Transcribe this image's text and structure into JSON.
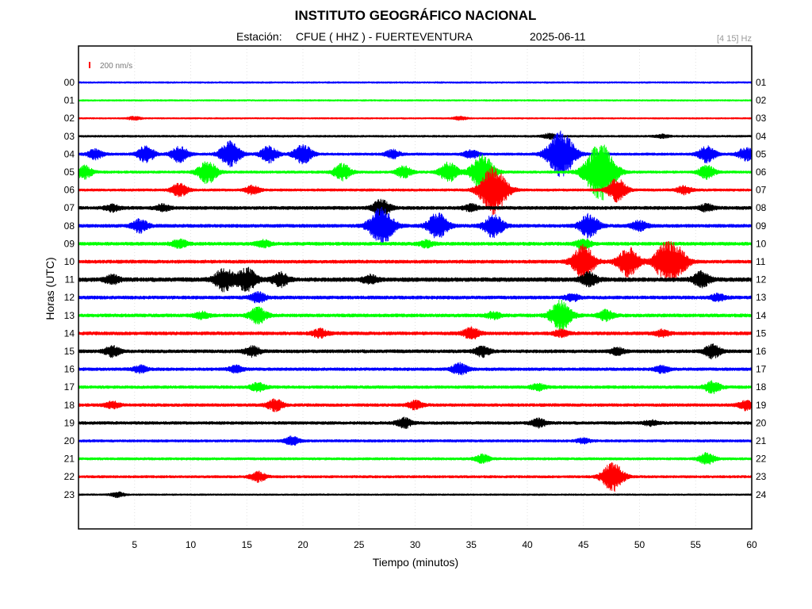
{
  "chart_data": {
    "type": "line",
    "title": "INSTITUTO GEOGRÁFICO NACIONAL",
    "station_label": "Estación:",
    "station": "CFUE ( HHZ ) - FUERTEVENTURA",
    "date": "2025-06-11",
    "filter": "[4 15] Hz",
    "scale_label": "200 nm/s",
    "xlabel": "Tiempo (minutos)",
    "ylabel": "Horas (UTC)",
    "xlim": [
      0,
      60
    ],
    "x_ticks": [
      5,
      10,
      15,
      20,
      25,
      30,
      35,
      40,
      45,
      50,
      55,
      60
    ],
    "grid": true,
    "colors": [
      "#0000ff",
      "#00ff00",
      "#ff0000",
      "#000000"
    ],
    "rows": [
      {
        "left": "00",
        "right": "01",
        "color": "#0000ff",
        "base": 1.0,
        "events": []
      },
      {
        "left": "01",
        "right": "02",
        "color": "#00ff00",
        "base": 0.9,
        "events": []
      },
      {
        "left": "02",
        "right": "03",
        "color": "#ff0000",
        "base": 0.9,
        "events": [
          {
            "t": 5,
            "amp": 2
          },
          {
            "t": 34,
            "amp": 2
          }
        ]
      },
      {
        "left": "03",
        "right": "04",
        "color": "#000000",
        "base": 1.2,
        "events": [
          {
            "t": 42,
            "amp": 3
          },
          {
            "t": 52,
            "amp": 2
          }
        ]
      },
      {
        "left": "04",
        "right": "05",
        "color": "#0000ff",
        "base": 1.5,
        "events": [
          {
            "t": 1.5,
            "amp": 6
          },
          {
            "t": 6,
            "amp": 10
          },
          {
            "t": 9,
            "amp": 10
          },
          {
            "t": 13.5,
            "amp": 16
          },
          {
            "t": 17,
            "amp": 10
          },
          {
            "t": 20,
            "amp": 12
          },
          {
            "t": 28,
            "amp": 5
          },
          {
            "t": 35,
            "amp": 5
          },
          {
            "t": 43,
            "amp": 30
          },
          {
            "t": 56,
            "amp": 10
          },
          {
            "t": 59.5,
            "amp": 8
          }
        ]
      },
      {
        "left": "05",
        "right": "06",
        "color": "#00ff00",
        "base": 1.5,
        "events": [
          {
            "t": 0.5,
            "amp": 8
          },
          {
            "t": 11.5,
            "amp": 14
          },
          {
            "t": 23.5,
            "amp": 10
          },
          {
            "t": 29,
            "amp": 7
          },
          {
            "t": 33,
            "amp": 12
          },
          {
            "t": 36,
            "amp": 22
          },
          {
            "t": 46.5,
            "amp": 36
          },
          {
            "t": 56,
            "amp": 8
          }
        ]
      },
      {
        "left": "06",
        "right": "07",
        "color": "#ff0000",
        "base": 1.5,
        "events": [
          {
            "t": 9,
            "amp": 8
          },
          {
            "t": 15.5,
            "amp": 5
          },
          {
            "t": 37,
            "amp": 30
          },
          {
            "t": 48,
            "amp": 14
          },
          {
            "t": 54,
            "amp": 5
          }
        ]
      },
      {
        "left": "07",
        "right": "08",
        "color": "#000000",
        "base": 2.0,
        "events": [
          {
            "t": 3,
            "amp": 4
          },
          {
            "t": 7.5,
            "amp": 4
          },
          {
            "t": 27,
            "amp": 10
          },
          {
            "t": 35,
            "amp": 4
          },
          {
            "t": 56,
            "amp": 4
          }
        ]
      },
      {
        "left": "08",
        "right": "09",
        "color": "#0000ff",
        "base": 2.0,
        "events": [
          {
            "t": 5.5,
            "amp": 8
          },
          {
            "t": 27,
            "amp": 24
          },
          {
            "t": 32,
            "amp": 16
          },
          {
            "t": 37,
            "amp": 14
          },
          {
            "t": 45.5,
            "amp": 14
          },
          {
            "t": 50,
            "amp": 6
          }
        ]
      },
      {
        "left": "09",
        "right": "10",
        "color": "#00ff00",
        "base": 2.0,
        "events": [
          {
            "t": 9,
            "amp": 5
          },
          {
            "t": 16.5,
            "amp": 4
          },
          {
            "t": 31,
            "amp": 4
          },
          {
            "t": 45,
            "amp": 6
          }
        ]
      },
      {
        "left": "10",
        "right": "11",
        "color": "#ff0000",
        "base": 2.0,
        "events": [
          {
            "t": 45,
            "amp": 20
          },
          {
            "t": 49,
            "amp": 18
          },
          {
            "t": 52.3,
            "amp": 22
          },
          {
            "t": 53.5,
            "amp": 14
          }
        ]
      },
      {
        "left": "11",
        "right": "12",
        "color": "#000000",
        "base": 2.5,
        "events": [
          {
            "t": 3,
            "amp": 5
          },
          {
            "t": 13,
            "amp": 14
          },
          {
            "t": 15,
            "amp": 14
          },
          {
            "t": 18,
            "amp": 8
          },
          {
            "t": 26,
            "amp": 5
          },
          {
            "t": 45.5,
            "amp": 8
          },
          {
            "t": 55.5,
            "amp": 9
          }
        ]
      },
      {
        "left": "12",
        "right": "13",
        "color": "#0000ff",
        "base": 2.0,
        "events": [
          {
            "t": 16,
            "amp": 6
          },
          {
            "t": 44,
            "amp": 4
          },
          {
            "t": 57,
            "amp": 4
          }
        ]
      },
      {
        "left": "13",
        "right": "14",
        "color": "#00ff00",
        "base": 2.0,
        "events": [
          {
            "t": 11,
            "amp": 4
          },
          {
            "t": 16,
            "amp": 10
          },
          {
            "t": 37,
            "amp": 4
          },
          {
            "t": 43,
            "amp": 18
          },
          {
            "t": 47,
            "amp": 6
          }
        ]
      },
      {
        "left": "14",
        "right": "15",
        "color": "#ff0000",
        "base": 2.0,
        "events": [
          {
            "t": 21.5,
            "amp": 5
          },
          {
            "t": 35,
            "amp": 7
          },
          {
            "t": 43,
            "amp": 4
          },
          {
            "t": 52,
            "amp": 4
          }
        ]
      },
      {
        "left": "15",
        "right": "16",
        "color": "#000000",
        "base": 2.0,
        "events": [
          {
            "t": 3,
            "amp": 6
          },
          {
            "t": 15.5,
            "amp": 6
          },
          {
            "t": 36,
            "amp": 6
          },
          {
            "t": 48,
            "amp": 4
          },
          {
            "t": 56.5,
            "amp": 8
          }
        ]
      },
      {
        "left": "16",
        "right": "17",
        "color": "#0000ff",
        "base": 1.8,
        "events": [
          {
            "t": 5.5,
            "amp": 4
          },
          {
            "t": 14,
            "amp": 4
          },
          {
            "t": 34,
            "amp": 7
          },
          {
            "t": 52,
            "amp": 4
          }
        ]
      },
      {
        "left": "17",
        "right": "18",
        "color": "#00ff00",
        "base": 1.8,
        "events": [
          {
            "t": 16,
            "amp": 5
          },
          {
            "t": 41,
            "amp": 4
          },
          {
            "t": 56.5,
            "amp": 7
          }
        ]
      },
      {
        "left": "18",
        "right": "19",
        "color": "#ff0000",
        "base": 1.8,
        "events": [
          {
            "t": 3,
            "amp": 4
          },
          {
            "t": 17.5,
            "amp": 7
          },
          {
            "t": 30,
            "amp": 5
          },
          {
            "t": 59.5,
            "amp": 6
          }
        ]
      },
      {
        "left": "19",
        "right": "20",
        "color": "#000000",
        "base": 1.8,
        "events": [
          {
            "t": 29,
            "amp": 6
          },
          {
            "t": 41,
            "amp": 5
          },
          {
            "t": 51,
            "amp": 3
          }
        ]
      },
      {
        "left": "20",
        "right": "21",
        "color": "#0000ff",
        "base": 1.5,
        "events": [
          {
            "t": 19,
            "amp": 5
          },
          {
            "t": 45,
            "amp": 3
          }
        ]
      },
      {
        "left": "21",
        "right": "22",
        "color": "#00ff00",
        "base": 1.5,
        "events": [
          {
            "t": 36,
            "amp": 5
          },
          {
            "t": 56,
            "amp": 7
          }
        ]
      },
      {
        "left": "22",
        "right": "23",
        "color": "#ff0000",
        "base": 1.5,
        "events": [
          {
            "t": 16,
            "amp": 6
          },
          {
            "t": 47.6,
            "amp": 18
          }
        ]
      },
      {
        "left": "23",
        "right": "24",
        "color": "#000000",
        "base": 1.0,
        "events": [
          {
            "t": 3.5,
            "amp": 3
          }
        ]
      }
    ]
  }
}
